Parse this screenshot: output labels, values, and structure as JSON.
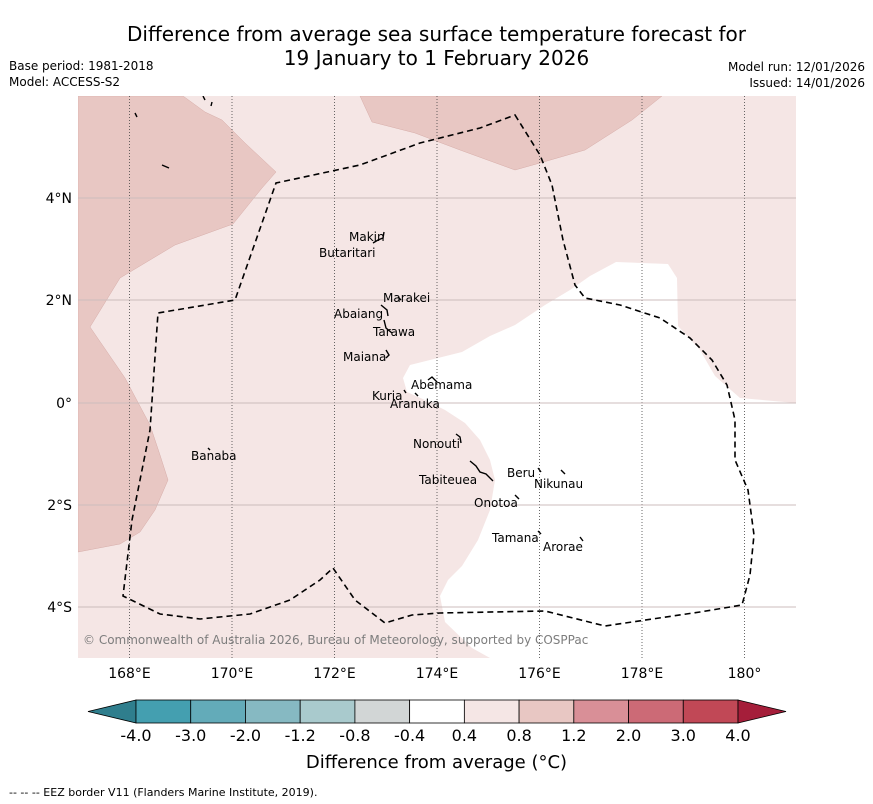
{
  "title_line1": "Difference from average sea surface temperature forecast for",
  "title_line2": "19 January to 1 February 2026",
  "base_period": "Base period: 1981-2018",
  "model": "Model: ACCESS-S2",
  "model_run": "Model run: 12/01/2026",
  "issued": "Issued: 14/01/2026",
  "copyright": "© Commonwealth of Australia 2026, Bureau of Meteorology, supported by COSPPac",
  "lon_ticks": [
    "168°E",
    "170°E",
    "172°E",
    "174°E",
    "176°E",
    "178°E",
    "180°"
  ],
  "lat_ticks": [
    "4°N",
    "2°N",
    "0°",
    "2°S",
    "4°S"
  ],
  "places": {
    "makin": "Makin",
    "butaritari": "Butaritari",
    "marakei": "Marakei",
    "abaiang": "Abaiang",
    "tarawa": "Tarawa",
    "maiana": "Maiana",
    "abemama": "Abemama",
    "kuria": "Kuria",
    "aranuka": "Aranuka",
    "banaba": "Banaba",
    "nonouti": "Nonouti",
    "beru": "Beru",
    "nikunau": "Nikunau",
    "tabiteuea": "Tabiteuea",
    "onotoa": "Onotoa",
    "tamana": "Tamana",
    "arorae": "Arorae"
  },
  "colorbar": {
    "ticks": [
      "-4.0",
      "-3.0",
      "-2.0",
      "-1.2",
      "-0.8",
      "-0.4",
      "0.4",
      "0.8",
      "1.2",
      "2.0",
      "3.0",
      "4.0"
    ],
    "colors": [
      "#449fb0",
      "#63abb9",
      "#86b9c2",
      "#a9cacd",
      "#d2d6d6",
      "#ffffff",
      "#f5e6e5",
      "#e8c7c3",
      "#d98f97",
      "#cc6a76",
      "#c14856"
    ],
    "low_extend": "#2f7e8d",
    "high_extend": "#a51e3a",
    "label": "Difference from average ($^\\circ$C)"
  },
  "label_display": "Difference from average (°C)",
  "footer": "--  --  -- EEZ border V11 (Flanders Marine Institute, 2019).",
  "region_colors": {
    "0.4 to 0.8": "#f5e6e5",
    "0.8 to 1.2": "#e8c7c3",
    "-0.4 to 0.4": "#ffffff"
  }
}
